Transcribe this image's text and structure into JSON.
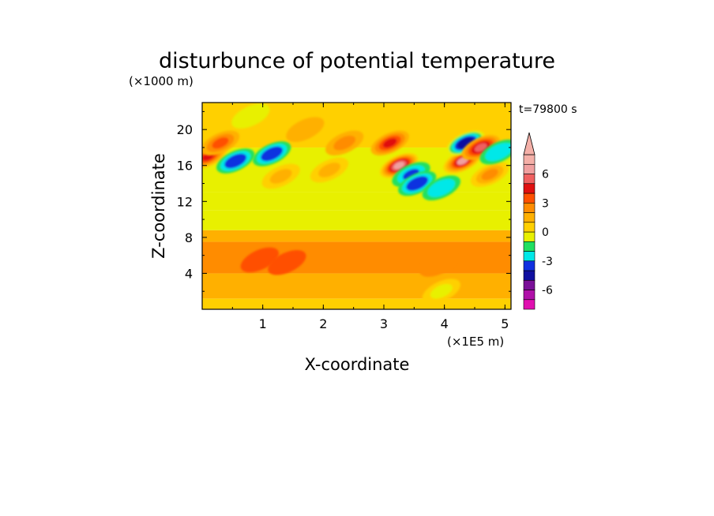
{
  "chart_data": {
    "type": "heatmap",
    "title": "disturbunce of potential temperature",
    "subtitle": "t=79800 s",
    "xlabel": "X-coordinate",
    "ylabel": "Z-coordinate",
    "x_unit": "(×1E5 m)",
    "y_unit": "(×1000 m)",
    "xlim": [
      0.0,
      5.1
    ],
    "ylim": [
      0,
      23
    ],
    "x_ticks": [
      1,
      2,
      3,
      4,
      5
    ],
    "x_tick_labels": [
      "1",
      "2",
      "3",
      "4",
      "5"
    ],
    "y_ticks": [
      4,
      8,
      12,
      16,
      20
    ],
    "y_tick_labels": [
      "4",
      "8",
      "12",
      "16",
      "20"
    ],
    "colorbar": {
      "levels": [
        -8,
        -7,
        -6,
        -5,
        -4,
        -3,
        -2,
        -1,
        0,
        1,
        2,
        3,
        4,
        5,
        6,
        7,
        8
      ],
      "tick_values": [
        -6,
        -3,
        0,
        3,
        6
      ],
      "tick_labels": [
        "-6",
        "-3",
        "0",
        "3",
        "6"
      ],
      "colors": [
        "#e010b0",
        "#b010a8",
        "#7a1098",
        "#1010a0",
        "#1030e0",
        "#00e8e8",
        "#20e060",
        "#e8f000",
        "#ffd000",
        "#ffb000",
        "#ff8c00",
        "#ff5000",
        "#e01010",
        "#f06060",
        "#f0a0a0",
        "#f4b0a8"
      ],
      "extend": "both"
    },
    "bands": [
      {
        "z_from": 0.0,
        "z_to": 1.2,
        "value": 0.5
      },
      {
        "z_from": 1.2,
        "z_to": 4.0,
        "value": 1.3
      },
      {
        "z_from": 4.0,
        "z_to": 7.5,
        "value": 2.1
      },
      {
        "z_from": 7.5,
        "z_to": 8.8,
        "value": 1.2
      },
      {
        "z_from": 8.8,
        "z_to": 11.0,
        "value": -0.5
      },
      {
        "z_from": 11.0,
        "z_to": 13.0,
        "value": -0.9
      },
      {
        "z_from": 13.0,
        "z_to": 18.0,
        "value": -0.3
      },
      {
        "z_from": 18.0,
        "z_to": 23.0,
        "value": 0.5
      }
    ],
    "features": [
      {
        "x": 0.1,
        "z": 17.0,
        "value": 4.5
      },
      {
        "x": 0.3,
        "z": 18.5,
        "value": 3.0
      },
      {
        "x": 0.55,
        "z": 16.5,
        "value": -4.0
      },
      {
        "x": 1.15,
        "z": 17.3,
        "value": -4.0
      },
      {
        "x": 1.3,
        "z": 14.8,
        "value": 1.2
      },
      {
        "x": 1.7,
        "z": 20.0,
        "value": 1.2
      },
      {
        "x": 2.1,
        "z": 15.5,
        "value": 1.3
      },
      {
        "x": 2.35,
        "z": 18.5,
        "value": 2.5
      },
      {
        "x": 3.1,
        "z": 18.5,
        "value": 4.5
      },
      {
        "x": 3.25,
        "z": 16.0,
        "value": 6.5
      },
      {
        "x": 3.45,
        "z": 15.0,
        "value": -3.5
      },
      {
        "x": 3.55,
        "z": 14.0,
        "value": -4.0
      },
      {
        "x": 3.95,
        "z": 13.5,
        "value": -3.0
      },
      {
        "x": 4.3,
        "z": 16.5,
        "value": 6.0
      },
      {
        "x": 4.35,
        "z": 18.5,
        "value": -5.0
      },
      {
        "x": 4.6,
        "z": 18.0,
        "value": 5.0
      },
      {
        "x": 4.75,
        "z": 15.0,
        "value": 2.5
      },
      {
        "x": 4.9,
        "z": 17.5,
        "value": -3.0
      },
      {
        "x": 0.95,
        "z": 5.5,
        "value": 3.0
      },
      {
        "x": 1.4,
        "z": 5.2,
        "value": 3.0
      },
      {
        "x": 3.9,
        "z": 5.0,
        "value": 2.5
      },
      {
        "x": 3.95,
        "z": 2.0,
        "value": -0.8
      },
      {
        "x": 0.8,
        "z": 21.5,
        "value": -0.8
      }
    ]
  }
}
